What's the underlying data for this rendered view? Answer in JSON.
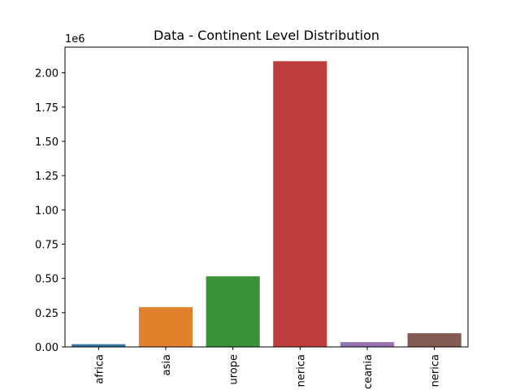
{
  "chart_data": {
    "type": "bar",
    "title": "Data - Continent Level Distribution",
    "xlabel": "",
    "ylabel": "",
    "y_offset_label": "1e6",
    "categories": [
      "africa",
      "asia",
      "europe",
      "north america",
      "oceania",
      "south america"
    ],
    "visible_tick_text": [
      "africa",
      "asia",
      "urope",
      "nerica",
      "ceania",
      "nerica"
    ],
    "values": [
      20000,
      290000,
      515000,
      2085000,
      35000,
      100000
    ],
    "ylim": [
      0,
      2187500
    ],
    "yticks": [
      0,
      250000,
      500000,
      750000,
      1000000,
      1250000,
      1500000,
      1750000,
      2000000
    ],
    "ytick_labels": [
      "0.00",
      "0.25",
      "0.50",
      "0.75",
      "1.00",
      "1.25",
      "1.50",
      "1.75",
      "2.00"
    ],
    "colors": [
      "#3274a1",
      "#e1812c",
      "#3a923a",
      "#c03d3e",
      "#9372b2",
      "#845b53"
    ],
    "grid": false,
    "legend": "none"
  }
}
